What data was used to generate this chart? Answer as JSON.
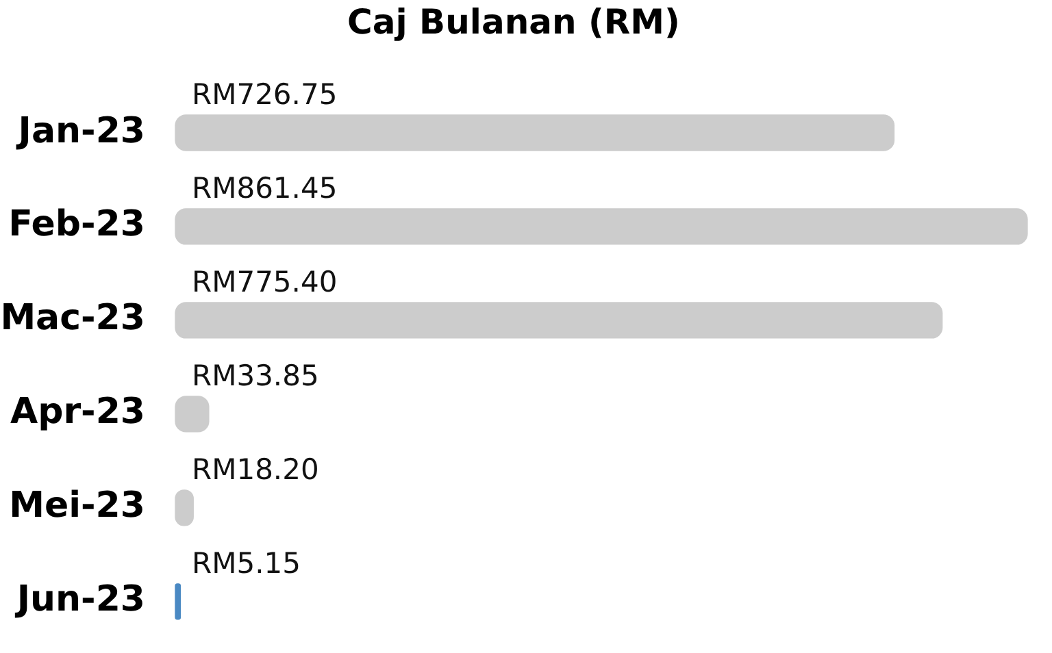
{
  "chart_data": {
    "type": "bar",
    "orientation": "horizontal",
    "title": "Caj Bulanan (RM)",
    "categories": [
      "Jan-23",
      "Feb-23",
      "Mac-23",
      "Apr-23",
      "Mei-23",
      "Jun-23"
    ],
    "values": [
      726.75,
      861.45,
      775.4,
      33.85,
      18.2,
      5.15
    ],
    "colors": [
      "#cccccc",
      "#cccccc",
      "#cccccc",
      "#cccccc",
      "#cccccc",
      "#4a89c3"
    ],
    "value_labels": [
      "RM726.75",
      "RM861.45",
      "RM775.40",
      "RM33.85",
      "RM18.20",
      "RM5.15"
    ],
    "tick_labels": "y"
  }
}
